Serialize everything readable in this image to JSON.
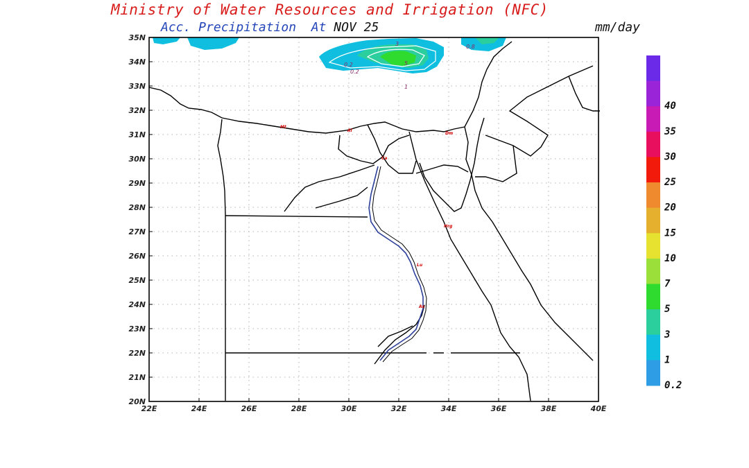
{
  "header": {
    "title": "Ministry of Water Resources and Irrigation (NFC)",
    "subtitle_label": "Acc. Precipitation",
    "subtitle_at": "At",
    "subtitle_date": "NOV 25",
    "units": "mm/day"
  },
  "map": {
    "lon_labels": [
      "22E",
      "24E",
      "26E",
      "28E",
      "30E",
      "32E",
      "34E",
      "36E",
      "38E",
      "40E"
    ],
    "lat_labels": [
      "20N",
      "21N",
      "22N",
      "23N",
      "24N",
      "25N",
      "26N",
      "27N",
      "28N",
      "29N",
      "30N",
      "31N",
      "32N",
      "33N",
      "34N",
      "35N"
    ],
    "city_labels": [
      "Mt",
      "Al",
      "Dm",
      "Ca",
      "Hrg",
      "Lu",
      "As"
    ],
    "contour_labels": [
      "0.2",
      "0.2",
      "3",
      "5",
      "1",
      "0.8"
    ]
  },
  "legend": {
    "colors": [
      "#2f9ce6",
      "#10bfe0",
      "#2bcf9e",
      "#2edb2e",
      "#9be03a",
      "#e6e22f",
      "#e6b02f",
      "#f08a2f",
      "#f21a0a",
      "#e8105e",
      "#c81ab4",
      "#9a24d8",
      "#6a2ae8"
    ],
    "labels": [
      "0.2",
      "1",
      "3",
      "5",
      "7",
      "10",
      "15",
      "20",
      "25",
      "30",
      "35",
      "40"
    ]
  }
}
